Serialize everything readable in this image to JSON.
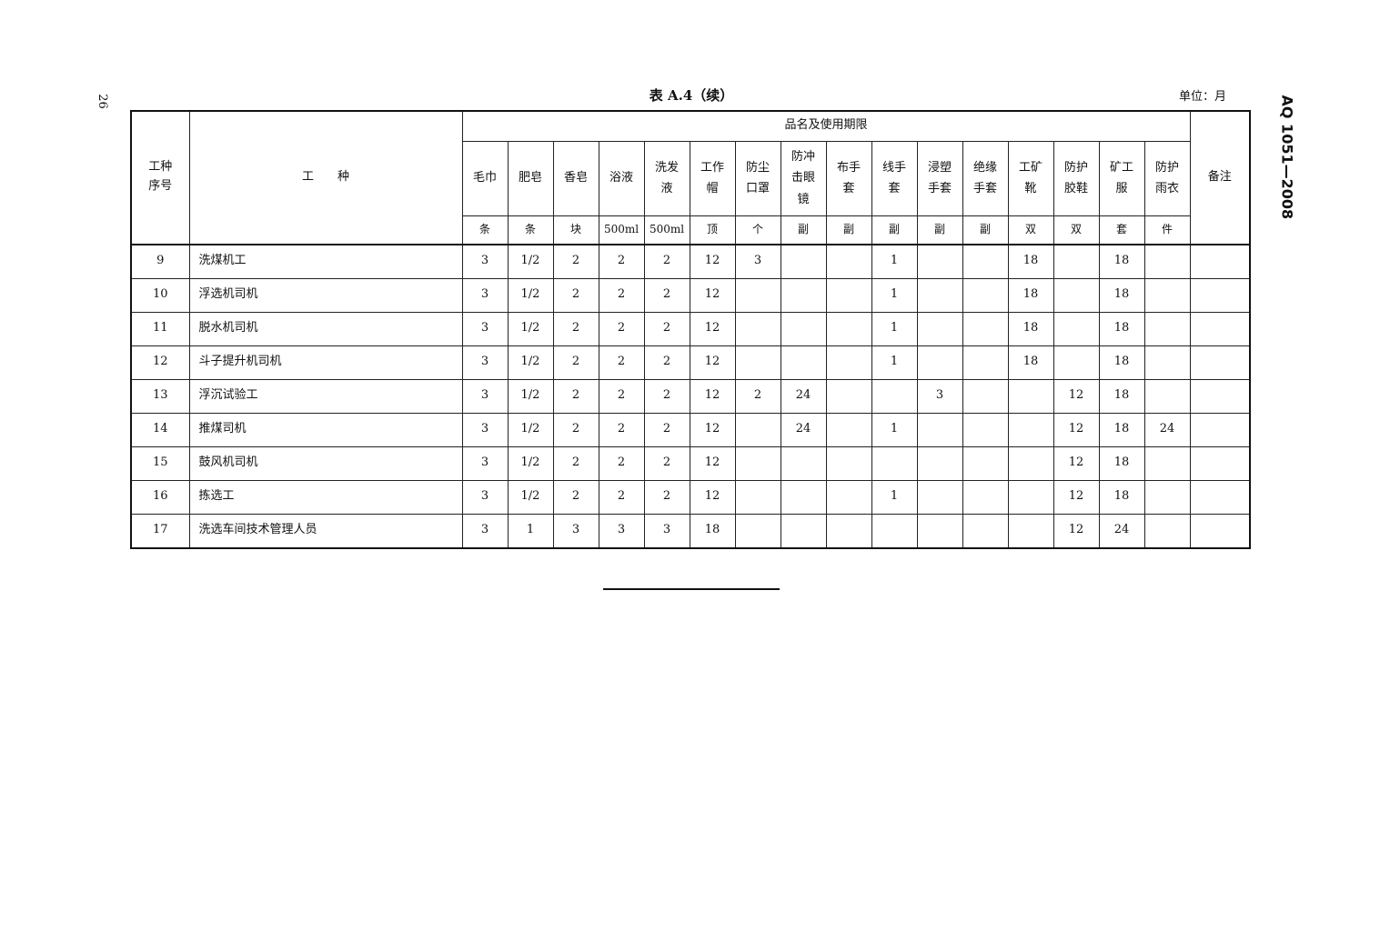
{
  "page_number": "26",
  "standard_code": "AQ 1051—2008",
  "caption": "表 A.4（续）",
  "unit_note": "单位：月",
  "header": {
    "seq": "工种序号",
    "job": "工　　种",
    "group": "品名及使用期限",
    "remark": "备注",
    "items": [
      {
        "name": "毛巾",
        "unit": "条"
      },
      {
        "name": "肥皂",
        "unit": "条"
      },
      {
        "name": "香皂",
        "unit": "块"
      },
      {
        "name": "浴液",
        "unit": "500ml"
      },
      {
        "name": "洗发液",
        "unit": "500ml"
      },
      {
        "name": "工作帽",
        "unit": "顶"
      },
      {
        "name": "防尘口罩",
        "unit": "个"
      },
      {
        "name": "防冲击眼镜",
        "unit": "副"
      },
      {
        "name": "布手套",
        "unit": "副"
      },
      {
        "name": "线手套",
        "unit": "副"
      },
      {
        "name": "浸塑手套",
        "unit": "副"
      },
      {
        "name": "绝缘手套",
        "unit": "副"
      },
      {
        "name": "工矿靴",
        "unit": "双"
      },
      {
        "name": "防护胶鞋",
        "unit": "双"
      },
      {
        "name": "矿工服",
        "unit": "套"
      },
      {
        "name": "防护雨衣",
        "unit": "件"
      }
    ]
  },
  "rows": [
    {
      "seq": "9",
      "job": "洗煤机工",
      "values": [
        "3",
        "1/2",
        "2",
        "2",
        "2",
        "12",
        "3",
        "",
        "",
        "1",
        "",
        "",
        "18",
        "",
        "18",
        ""
      ],
      "remark": ""
    },
    {
      "seq": "10",
      "job": "浮选机司机",
      "values": [
        "3",
        "1/2",
        "2",
        "2",
        "2",
        "12",
        "",
        "",
        "",
        "1",
        "",
        "",
        "18",
        "",
        "18",
        ""
      ],
      "remark": ""
    },
    {
      "seq": "11",
      "job": "脱水机司机",
      "values": [
        "3",
        "1/2",
        "2",
        "2",
        "2",
        "12",
        "",
        "",
        "",
        "1",
        "",
        "",
        "18",
        "",
        "18",
        ""
      ],
      "remark": ""
    },
    {
      "seq": "12",
      "job": "斗子提升机司机",
      "values": [
        "3",
        "1/2",
        "2",
        "2",
        "2",
        "12",
        "",
        "",
        "",
        "1",
        "",
        "",
        "18",
        "",
        "18",
        ""
      ],
      "remark": ""
    },
    {
      "seq": "13",
      "job": "浮沉试验工",
      "values": [
        "3",
        "1/2",
        "2",
        "2",
        "2",
        "12",
        "2",
        "24",
        "",
        "",
        "3",
        "",
        "",
        "12",
        "18",
        ""
      ],
      "remark": ""
    },
    {
      "seq": "14",
      "job": "推煤司机",
      "values": [
        "3",
        "1/2",
        "2",
        "2",
        "2",
        "12",
        "",
        "24",
        "",
        "1",
        "",
        "",
        "",
        "12",
        "18",
        "24"
      ],
      "remark": ""
    },
    {
      "seq": "15",
      "job": "鼓风机司机",
      "values": [
        "3",
        "1/2",
        "2",
        "2",
        "2",
        "12",
        "",
        "",
        "",
        "",
        "",
        "",
        "",
        "12",
        "18",
        ""
      ],
      "remark": ""
    },
    {
      "seq": "16",
      "job": "拣选工",
      "values": [
        "3",
        "1/2",
        "2",
        "2",
        "2",
        "12",
        "",
        "",
        "",
        "1",
        "",
        "",
        "",
        "12",
        "18",
        ""
      ],
      "remark": ""
    },
    {
      "seq": "17",
      "job": "洗选车间技术管理人员",
      "values": [
        "3",
        "1",
        "3",
        "3",
        "3",
        "18",
        "",
        "",
        "",
        "",
        "",
        "",
        "",
        "12",
        "24",
        ""
      ],
      "remark": ""
    }
  ]
}
